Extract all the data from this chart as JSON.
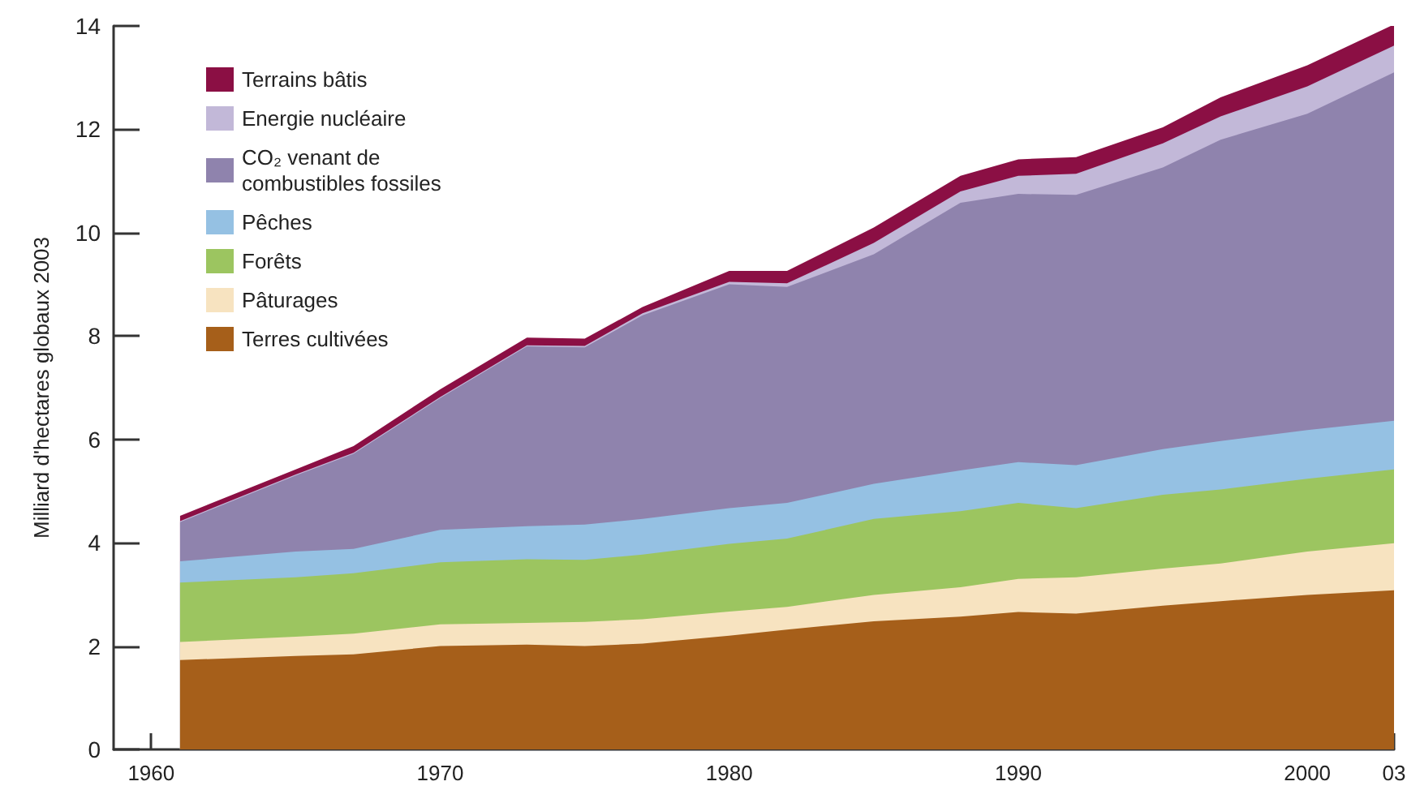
{
  "chart_data": {
    "type": "area",
    "ylabel": "Milliard d'hectares globaux 2003",
    "stacked": true,
    "x": [
      1961,
      1965,
      1967,
      1970,
      1973,
      1975,
      1977,
      1980,
      1982,
      1985,
      1988,
      1990,
      1992,
      1995,
      1997,
      2000,
      2003
    ],
    "series": [
      {
        "name": "Terres cultivées",
        "color": "#a65f1a",
        "values": [
          1.73,
          1.81,
          1.84,
          2.0,
          2.03,
          2.0,
          2.05,
          2.2,
          2.32,
          2.48,
          2.57,
          2.66,
          2.63,
          2.78,
          2.87,
          2.99,
          3.08
        ]
      },
      {
        "name": "Pâturages",
        "color": "#f7e3c0",
        "values": [
          0.35,
          0.37,
          0.4,
          0.42,
          0.42,
          0.47,
          0.47,
          0.47,
          0.44,
          0.51,
          0.57,
          0.64,
          0.7,
          0.72,
          0.73,
          0.84,
          0.91
        ]
      },
      {
        "name": "Forêts",
        "color": "#9cc560",
        "values": [
          1.15,
          1.15,
          1.17,
          1.2,
          1.23,
          1.2,
          1.25,
          1.31,
          1.32,
          1.47,
          1.47,
          1.47,
          1.34,
          1.43,
          1.43,
          1.41,
          1.43
        ]
      },
      {
        "name": "Pêches",
        "color": "#95c1e3",
        "values": [
          0.41,
          0.5,
          0.47,
          0.63,
          0.64,
          0.68,
          0.69,
          0.69,
          0.69,
          0.68,
          0.79,
          0.79,
          0.83,
          0.88,
          0.94,
          0.94,
          0.94
        ]
      },
      {
        "name": "CO₂ venant de combustibles fossiles",
        "color": "#8f83ad",
        "values": [
          0.76,
          1.47,
          1.84,
          2.55,
          3.48,
          3.43,
          3.94,
          4.33,
          4.18,
          4.44,
          5.18,
          5.19,
          5.23,
          5.45,
          5.83,
          6.12,
          6.74
        ]
      },
      {
        "name": "Energie nucléaire",
        "color": "#c2b8d8",
        "values": [
          0.02,
          0.02,
          0.02,
          0.02,
          0.02,
          0.03,
          0.04,
          0.05,
          0.07,
          0.22,
          0.22,
          0.35,
          0.41,
          0.47,
          0.45,
          0.53,
          0.52
        ]
      },
      {
        "name": "Terrains bâtis",
        "color": "#8b0f44",
        "values": [
          0.1,
          0.1,
          0.13,
          0.15,
          0.15,
          0.14,
          0.12,
          0.21,
          0.24,
          0.3,
          0.3,
          0.32,
          0.32,
          0.31,
          0.37,
          0.41,
          0.41
        ]
      }
    ],
    "xlim": [
      1958.7,
      2003
    ],
    "xticks": [
      1960,
      1970,
      1980,
      1990,
      2000,
      {
        "value": 2003,
        "label": "03"
      }
    ],
    "ylim": [
      0,
      14
    ],
    "yticks": [
      0,
      2,
      4,
      6,
      8,
      10,
      12,
      14
    ],
    "grid": false,
    "legend": "top left"
  }
}
